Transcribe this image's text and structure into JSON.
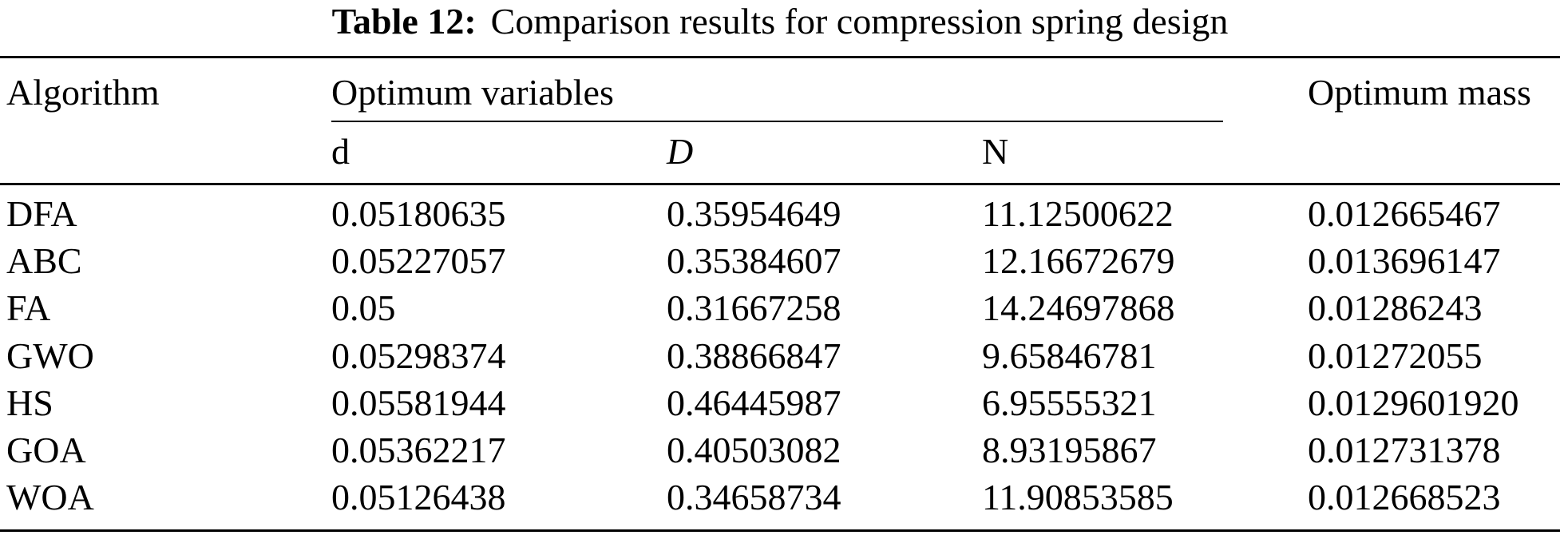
{
  "title": {
    "label": "Table 12:",
    "text": "Comparison results for compression spring design"
  },
  "table": {
    "col_algorithm": "Algorithm",
    "group_header": "Optimum variables",
    "col_mass": "Optimum mass",
    "sub_columns": [
      "d",
      "D",
      "N"
    ],
    "rows": [
      {
        "algorithm": "DFA",
        "d": "0.05180635",
        "D": "0.35954649",
        "N": "11.12500622",
        "mass": "0.012665467"
      },
      {
        "algorithm": "ABC",
        "d": "0.05227057",
        "D": "0.35384607",
        "N": "12.16672679",
        "mass": "0.013696147"
      },
      {
        "algorithm": "FA",
        "d": "0.05",
        "D": "0.31667258",
        "N": "14.24697868",
        "mass": "0.01286243"
      },
      {
        "algorithm": "GWO",
        "d": "0.05298374",
        "D": "0.38866847",
        "N": "9.65846781",
        "mass": "0.01272055"
      },
      {
        "algorithm": "HS",
        "d": "0.05581944",
        "D": "0.46445987",
        "N": "6.95555321",
        "mass": "0.0129601920"
      },
      {
        "algorithm": "GOA",
        "d": "0.05362217",
        "D": "0.40503082",
        "N": "8.93195867",
        "mass": "0.012731378"
      },
      {
        "algorithm": "WOA",
        "d": "0.05126438",
        "D": "0.34658734",
        "N": "11.90853585",
        "mass": "0.012668523"
      }
    ]
  }
}
